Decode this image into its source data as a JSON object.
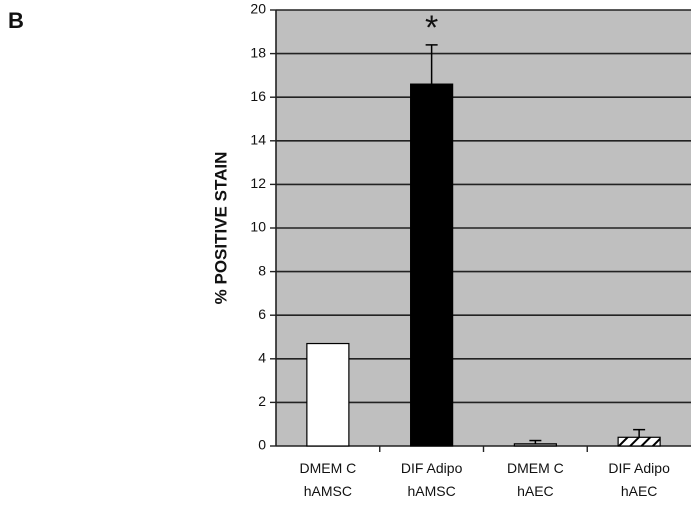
{
  "figure": {
    "panel_label": "B"
  },
  "colors": {
    "plot_background": "#bfbfbf",
    "gridline": "#222222",
    "axis": "#222222",
    "text": "#111111",
    "bar_outline": "#000000"
  },
  "chart_data": {
    "type": "bar",
    "title": "",
    "xlabel": "",
    "ylabel": "% POSITIVE STAIN",
    "ylim": [
      0,
      20
    ],
    "yticks": [
      0,
      2,
      4,
      6,
      8,
      10,
      12,
      14,
      16,
      18,
      20
    ],
    "grid": true,
    "categories": [
      [
        "DMEM C",
        "hAMSC"
      ],
      [
        "DIF Adipo",
        "hAMSC"
      ],
      [
        "DMEM C",
        "hAEC"
      ],
      [
        "DIF Adipo",
        "hAEC"
      ]
    ],
    "values": [
      4.7,
      16.6,
      0.1,
      0.4
    ],
    "error": [
      0,
      1.8,
      0.15,
      0.35
    ],
    "bar_styles": [
      "white",
      "black",
      "gray",
      "hatched"
    ],
    "annotations": [
      {
        "category_index": 1,
        "text": "*"
      }
    ]
  }
}
